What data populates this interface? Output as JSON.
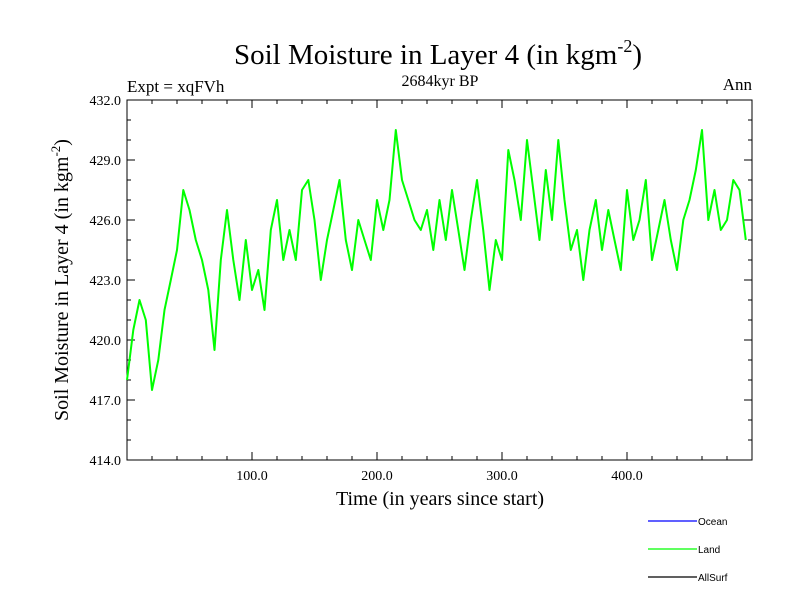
{
  "chart_data": {
    "type": "line",
    "title": "Soil Moisture in Layer 4 (in kgm",
    "title_sup": "-2",
    "title_close": ")",
    "subtitle_left": "Expt = xqFVh",
    "subtitle_center": "2684kyr BP",
    "subtitle_right": "Ann",
    "xlabel": "Time (in years since start)",
    "ylabel": "Soil Moisture in Layer 4 (in kgm",
    "ylabel_sup": "-2",
    "ylabel_close": ")",
    "xlim": [
      0,
      500
    ],
    "ylim": [
      414,
      432
    ],
    "xticks": [
      100,
      200,
      300,
      400
    ],
    "xtick_labels": [
      "100.0",
      "200.0",
      "300.0",
      "400.0"
    ],
    "yticks": [
      414,
      417,
      420,
      423,
      426,
      429,
      432
    ],
    "ytick_labels": [
      "414.0",
      "417.0",
      "420.0",
      "423.0",
      "426.0",
      "429.0",
      "432.0"
    ],
    "legend": [
      {
        "name": "Ocean",
        "color": "#0000ff"
      },
      {
        "name": "Land",
        "color": "#00ff00"
      },
      {
        "name": "AllSurf",
        "color": "#000000"
      }
    ],
    "series": [
      {
        "name": "Land",
        "color": "#00ff00",
        "x": [
          0,
          5,
          10,
          15,
          20,
          25,
          30,
          35,
          40,
          45,
          50,
          55,
          60,
          65,
          70,
          75,
          80,
          85,
          90,
          95,
          100,
          105,
          110,
          115,
          120,
          125,
          130,
          135,
          140,
          145,
          150,
          155,
          160,
          165,
          170,
          175,
          180,
          185,
          190,
          195,
          200,
          205,
          210,
          215,
          220,
          225,
          230,
          235,
          240,
          245,
          250,
          255,
          260,
          265,
          270,
          275,
          280,
          285,
          290,
          295,
          300,
          305,
          310,
          315,
          320,
          325,
          330,
          335,
          340,
          345,
          350,
          355,
          360,
          365,
          370,
          375,
          380,
          385,
          390,
          395,
          400,
          405,
          410,
          415,
          420,
          425,
          430,
          435,
          440,
          445,
          450,
          455,
          460,
          465,
          470,
          475,
          480,
          485,
          490,
          495
        ],
        "values": [
          418.0,
          420.5,
          422.0,
          421.0,
          417.5,
          419.0,
          421.5,
          423.0,
          424.5,
          427.5,
          426.5,
          425.0,
          424.0,
          422.5,
          419.5,
          424.0,
          426.5,
          424.0,
          422.0,
          425.0,
          422.5,
          423.5,
          421.5,
          425.5,
          427.0,
          424.0,
          425.5,
          424.0,
          427.5,
          428.0,
          426.0,
          423.0,
          425.0,
          426.5,
          428.0,
          425.0,
          423.5,
          426.0,
          425.0,
          424.0,
          427.0,
          425.5,
          427.0,
          430.5,
          428.0,
          427.0,
          426.0,
          425.5,
          426.5,
          424.5,
          427.0,
          425.0,
          427.5,
          425.5,
          423.5,
          426.0,
          428.0,
          425.5,
          422.5,
          425.0,
          424.0,
          429.5,
          428.0,
          426.0,
          430.0,
          427.5,
          425.0,
          428.5,
          426.0,
          430.0,
          427.0,
          424.5,
          425.5,
          423.0,
          425.5,
          427.0,
          424.5,
          426.5,
          425.0,
          423.5,
          427.5,
          425.0,
          426.0,
          428.0,
          424.0,
          425.5,
          427.0,
          425.0,
          423.5,
          426.0,
          427.0,
          428.5,
          430.5,
          426.0,
          427.5,
          425.5,
          426.0,
          428.0,
          427.5,
          425.0
        ]
      }
    ]
  }
}
